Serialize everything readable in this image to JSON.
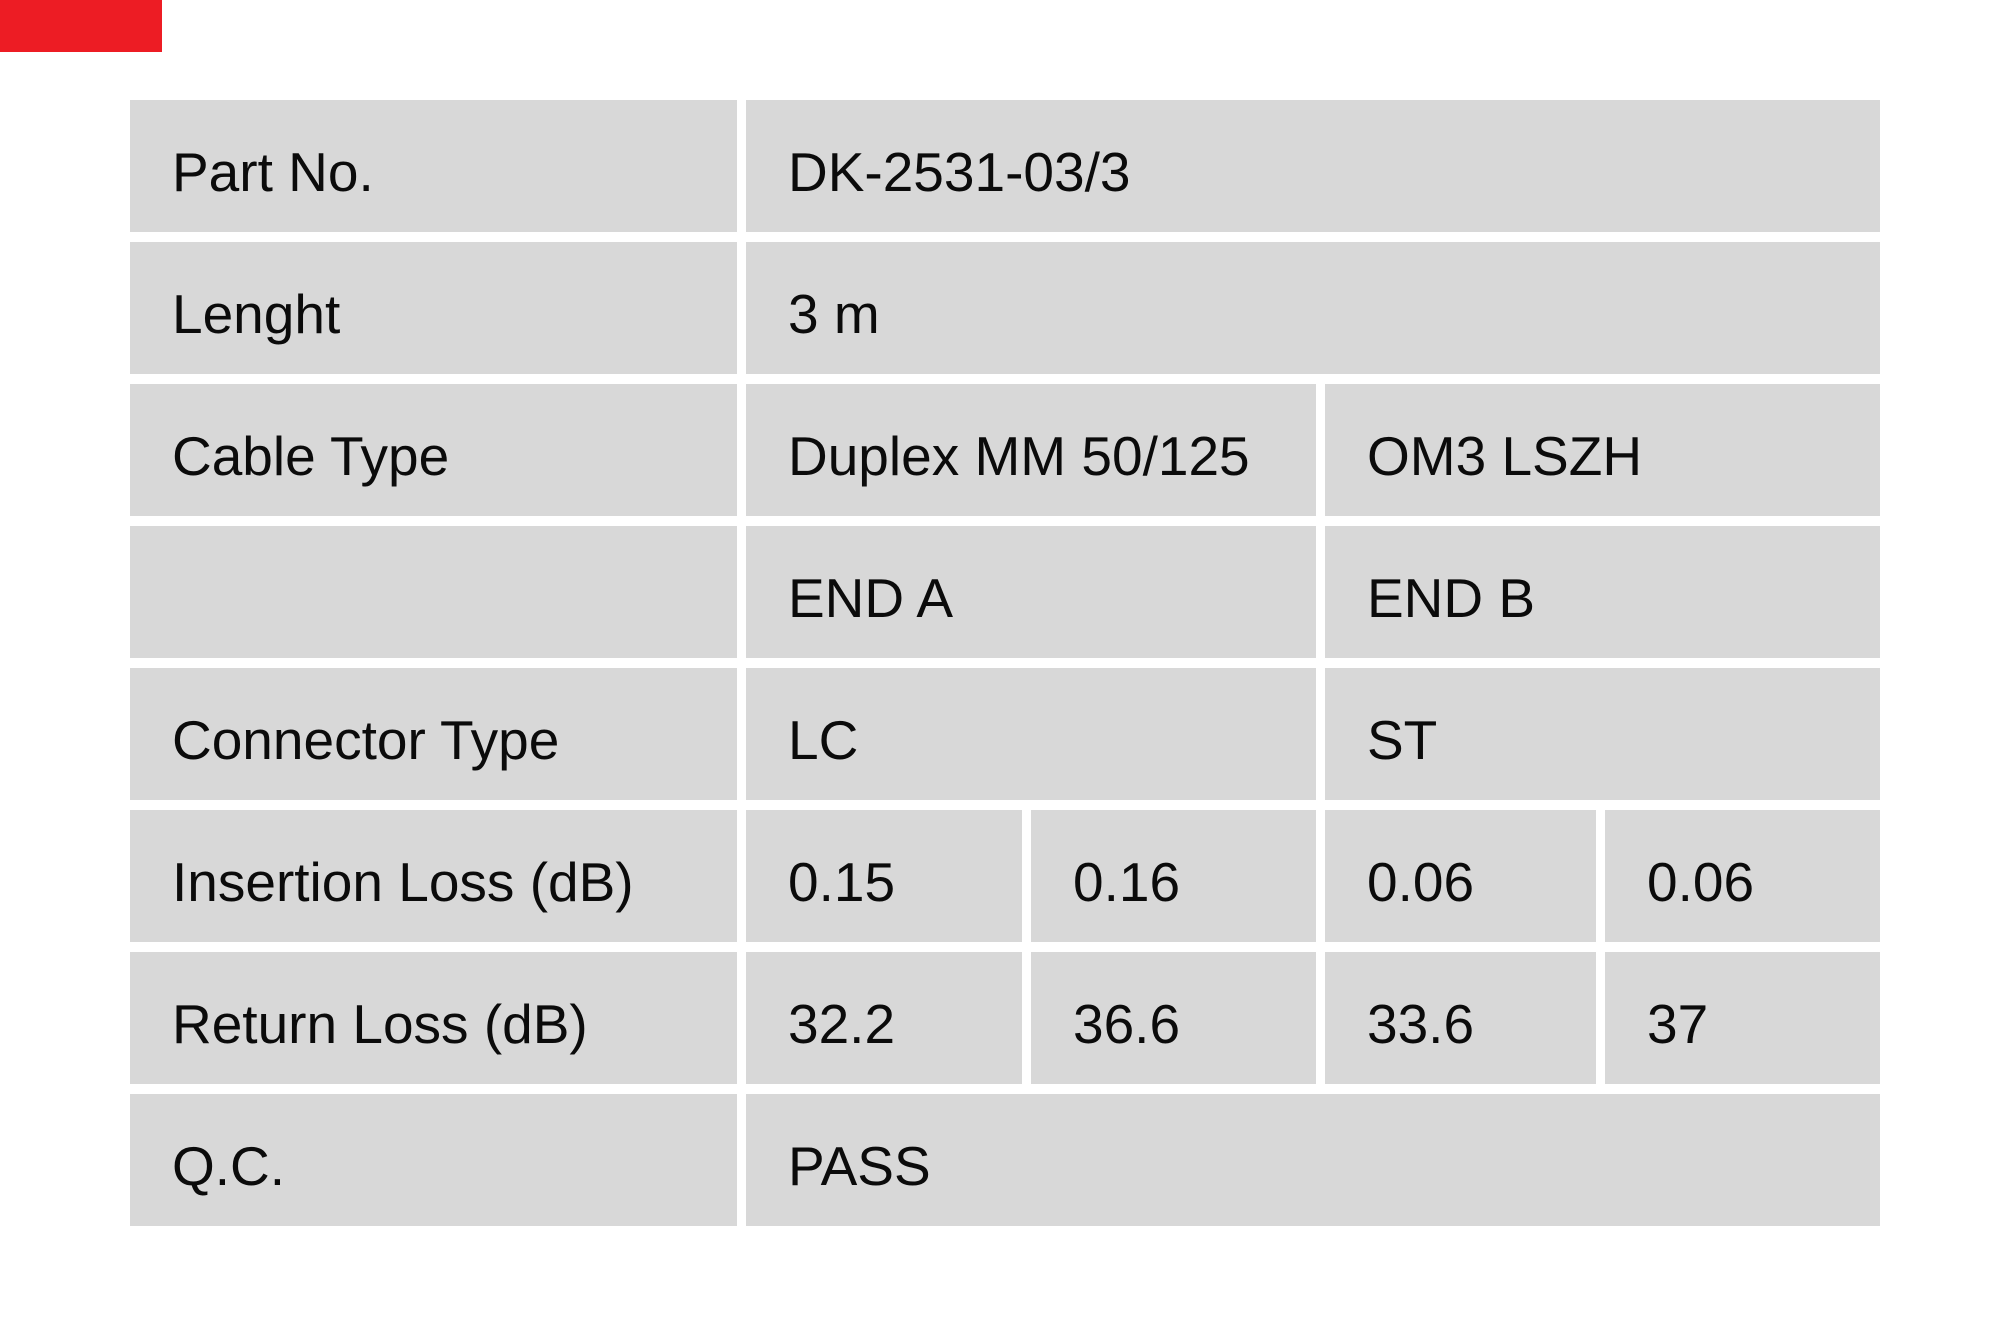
{
  "logo_mark": {
    "color": "#ed1c24"
  },
  "table": {
    "cell_bg": "#d8d8d8",
    "text_color": "#0b0b0b",
    "rows": [
      {
        "label": "Part No.",
        "values": [
          {
            "text": "DK-2531-03/3",
            "span": 4
          }
        ]
      },
      {
        "label": "Lenght",
        "values": [
          {
            "text": "3 m",
            "span": 4
          }
        ]
      },
      {
        "label": "Cable Type",
        "values": [
          {
            "text": "Duplex MM 50/125",
            "span": 2
          },
          {
            "text": "OM3 LSZH",
            "span": 2
          }
        ]
      },
      {
        "label": "",
        "values": [
          {
            "text": "END A",
            "span": 2
          },
          {
            "text": "END B",
            "span": 2
          }
        ]
      },
      {
        "label": "Connector Type",
        "values": [
          {
            "text": "LC",
            "span": 2
          },
          {
            "text": "ST",
            "span": 2
          }
        ]
      },
      {
        "label": "Insertion Loss (dB)",
        "values": [
          {
            "text": "0.15",
            "span": 1
          },
          {
            "text": "0.16",
            "span": 1
          },
          {
            "text": "0.06",
            "span": 1
          },
          {
            "text": "0.06",
            "span": 1
          }
        ]
      },
      {
        "label": "Return Loss (dB)",
        "values": [
          {
            "text": "32.2",
            "span": 1
          },
          {
            "text": "36.6",
            "span": 1
          },
          {
            "text": "33.6",
            "span": 1
          },
          {
            "text": "37",
            "span": 1
          }
        ]
      },
      {
        "label": "Q.C.",
        "values": [
          {
            "text": "PASS",
            "span": 4
          }
        ]
      }
    ]
  }
}
